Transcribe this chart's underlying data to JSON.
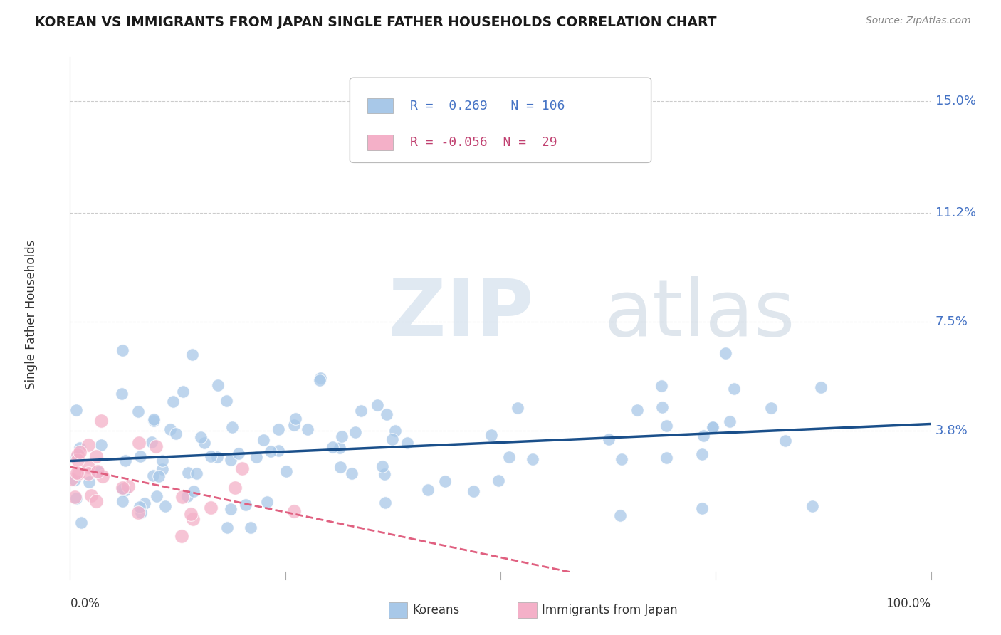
{
  "title": "KOREAN VS IMMIGRANTS FROM JAPAN SINGLE FATHER HOUSEHOLDS CORRELATION CHART",
  "source": "Source: ZipAtlas.com",
  "ylabel": "Single Father Households",
  "ytick_labels": [
    "3.8%",
    "7.5%",
    "11.2%",
    "15.0%"
  ],
  "ytick_values": [
    0.038,
    0.075,
    0.112,
    0.15
  ],
  "xlim": [
    0.0,
    1.0
  ],
  "ylim": [
    -0.01,
    0.165
  ],
  "korean_R": 0.269,
  "korean_N": 106,
  "japan_R": -0.056,
  "japan_N": 29,
  "korean_color": "#a8c8e8",
  "japan_color": "#f4b0c8",
  "trend_korean_color": "#1a4f8a",
  "trend_japan_color": "#e06080",
  "watermark_zip": "ZIP",
  "watermark_atlas": "atlas",
  "background_color": "#ffffff",
  "legend_label_korean": "Koreans",
  "legend_label_japan": "Immigrants from Japan",
  "grid_color": "#cccccc",
  "axis_color": "#aaaaaa",
  "tick_color": "#4472c4",
  "label_color": "#333333"
}
